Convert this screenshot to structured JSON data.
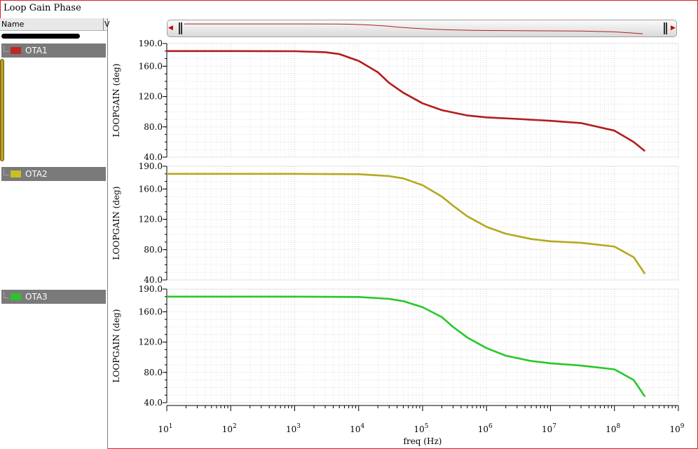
{
  "window": {
    "title": "Loop Gain Phase"
  },
  "panel": {
    "column_name": "Name",
    "column_v": "V",
    "traces": [
      {
        "label": "OTA1",
        "color": "#c02828"
      },
      {
        "label": "OTA2",
        "color": "#c8c020"
      },
      {
        "label": "OTA3",
        "color": "#30c030"
      }
    ]
  },
  "overview": {
    "left_arrow": "◀",
    "right_arrow": "▶",
    "trace_color": "#b02020"
  },
  "chart_data": {
    "type": "line",
    "xlabel": "freq (Hz)",
    "ylabel": "LOOPGAIN (deg)",
    "x_scale": "log",
    "xlim": [
      10,
      1000000000
    ],
    "x_tick_labels": [
      {
        "base": "10",
        "exp": "1"
      },
      {
        "base": "10",
        "exp": "2"
      },
      {
        "base": "10",
        "exp": "3"
      },
      {
        "base": "10",
        "exp": "4"
      },
      {
        "base": "10",
        "exp": "5"
      },
      {
        "base": "10",
        "exp": "6"
      },
      {
        "base": "10",
        "exp": "7"
      },
      {
        "base": "10",
        "exp": "8"
      },
      {
        "base": "10",
        "exp": "9"
      }
    ],
    "ylim": [
      40,
      190
    ],
    "y_tick_labels": [
      "190.0",
      "160.0",
      "120.0",
      "80.0",
      "40.0"
    ],
    "y_ticks": [
      190,
      160,
      120,
      80,
      40
    ],
    "grid": true,
    "series": [
      {
        "name": "OTA1",
        "color": "#b41c1c",
        "x": [
          10,
          100,
          1000,
          3000,
          5000,
          10000,
          20000,
          30000,
          50000,
          100000,
          200000,
          500000,
          1000000,
          3000000,
          10000000,
          30000000,
          100000000,
          200000000,
          300000000
        ],
        "y": [
          180,
          180,
          179.8,
          178.5,
          176,
          167,
          152,
          138,
          125,
          111,
          102,
          95,
          92.5,
          90.5,
          88,
          85,
          75,
          60,
          48
        ]
      },
      {
        "name": "OTA2",
        "color": "#b4a81e",
        "x": [
          10,
          100,
          1000,
          10000,
          30000,
          50000,
          100000,
          200000,
          300000,
          500000,
          1000000,
          2000000,
          5000000,
          10000000,
          30000000,
          100000000,
          200000000,
          300000000
        ],
        "y": [
          180,
          180,
          180,
          179.5,
          177,
          174,
          165,
          150,
          138,
          124,
          110,
          101,
          94,
          91,
          89,
          84,
          70,
          48
        ]
      },
      {
        "name": "OTA3",
        "color": "#28c828",
        "x": [
          10,
          100,
          1000,
          10000,
          30000,
          50000,
          100000,
          200000,
          300000,
          500000,
          1000000,
          2000000,
          5000000,
          10000000,
          30000000,
          100000000,
          200000000,
          300000000
        ],
        "y": [
          180,
          180,
          180,
          179.5,
          177,
          174,
          166,
          153,
          140,
          126,
          112,
          102,
          95,
          92,
          89,
          84,
          70,
          48
        ]
      }
    ]
  }
}
